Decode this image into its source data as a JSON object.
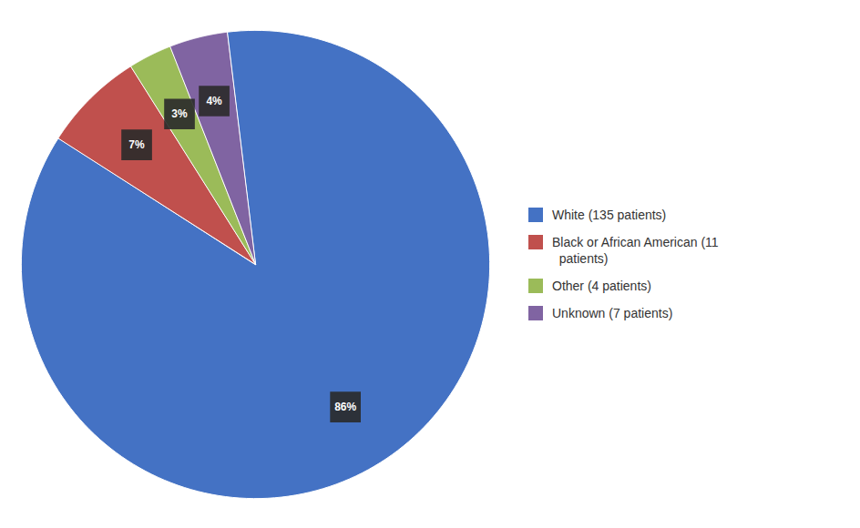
{
  "chart_data": {
    "type": "pie",
    "categories": [
      "White (135 patients)",
      "Black or African American (11\n  patients)",
      "Other (4 patients)",
      "Unknown (7 patients)"
    ],
    "values": [
      86,
      7,
      3,
      4
    ],
    "value_labels": [
      "86%",
      "7%",
      "3%",
      "4%"
    ],
    "colors": [
      "#4472C4",
      "#C0504D",
      "#9BBB59",
      "#8064A2"
    ],
    "data_labels": true,
    "legend": "right",
    "tick_labels": false
  }
}
